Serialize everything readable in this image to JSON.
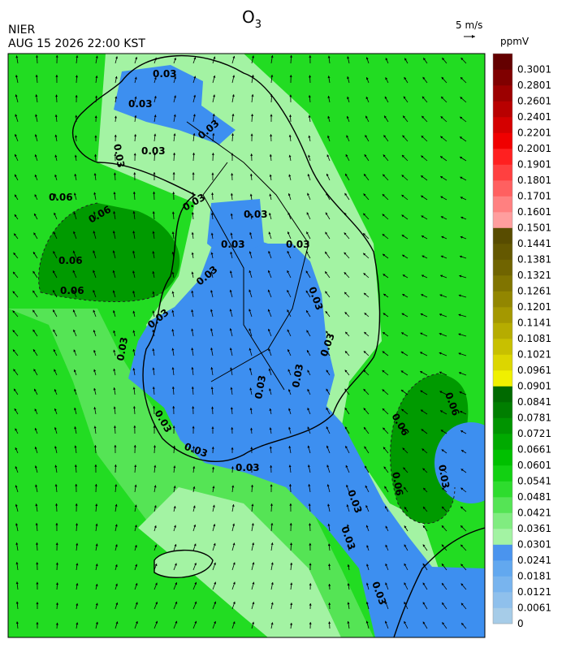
{
  "header": {
    "title": {
      "base": "O",
      "subscript": "3"
    },
    "agency": "NIER",
    "timestamp": "AUG 15 2026 22:00 KST"
  },
  "wind_scale": "5 m/s",
  "legend": {
    "unit": "ppmV",
    "items": [
      {
        "label": "0",
        "color": "#a6cce8"
      },
      {
        "label": "0.0061",
        "color": "#8fc0ec"
      },
      {
        "label": "0.0121",
        "color": "#78b4ee"
      },
      {
        "label": "0.0181",
        "color": "#62a8ef"
      },
      {
        "label": "0.0241",
        "color": "#4a94ee"
      },
      {
        "label": "0.0301",
        "color": "#a3f3a3"
      },
      {
        "label": "0.0361",
        "color": "#80ec80"
      },
      {
        "label": "0.0421",
        "color": "#55e455"
      },
      {
        "label": "0.0481",
        "color": "#2edc2e"
      },
      {
        "label": "0.0541",
        "color": "#12d012"
      },
      {
        "label": "0.0601",
        "color": "#00c000"
      },
      {
        "label": "0.0661",
        "color": "#00aa00"
      },
      {
        "label": "0.0721",
        "color": "#009400"
      },
      {
        "label": "0.0781",
        "color": "#007e00"
      },
      {
        "label": "0.0841",
        "color": "#006a00"
      },
      {
        "label": "0.0901",
        "color": "#f0f000"
      },
      {
        "label": "0.0961",
        "color": "#dcd600"
      },
      {
        "label": "0.1021",
        "color": "#c8c000"
      },
      {
        "label": "0.1081",
        "color": "#b6ac00"
      },
      {
        "label": "0.1141",
        "color": "#a49800"
      },
      {
        "label": "0.1201",
        "color": "#928600"
      },
      {
        "label": "0.1261",
        "color": "#807400"
      },
      {
        "label": "0.1321",
        "color": "#706400"
      },
      {
        "label": "0.1381",
        "color": "#645800"
      },
      {
        "label": "0.1441",
        "color": "#584c00"
      },
      {
        "label": "0.1501",
        "color": "#ff9e9e"
      },
      {
        "label": "0.1601",
        "color": "#ff8080"
      },
      {
        "label": "0.1701",
        "color": "#ff6060"
      },
      {
        "label": "0.1801",
        "color": "#ff4040"
      },
      {
        "label": "0.1901",
        "color": "#ff2020"
      },
      {
        "label": "0.2001",
        "color": "#f00000"
      },
      {
        "label": "0.2201",
        "color": "#d40000"
      },
      {
        "label": "0.2401",
        "color": "#b80000"
      },
      {
        "label": "0.2601",
        "color": "#9c0000"
      },
      {
        "label": "0.2801",
        "color": "#800000"
      },
      {
        "label": "0.3001",
        "color": "#640000"
      }
    ]
  },
  "contour_labels": [
    "0.03",
    "0.03",
    "0.03",
    "0.03",
    "0.03",
    "0.06",
    "0.06",
    "0.06",
    "0.06",
    "0.03",
    "0.03",
    "0.03",
    "0.03",
    "0.03",
    "0.03",
    "0.03",
    "0.03",
    "0.03",
    "0.03",
    "0.03",
    "0.03",
    "0.03",
    "0.03",
    "0.03",
    "0.06",
    "0.06",
    "0.03",
    "0.06",
    "0.03",
    "0.03"
  ]
}
